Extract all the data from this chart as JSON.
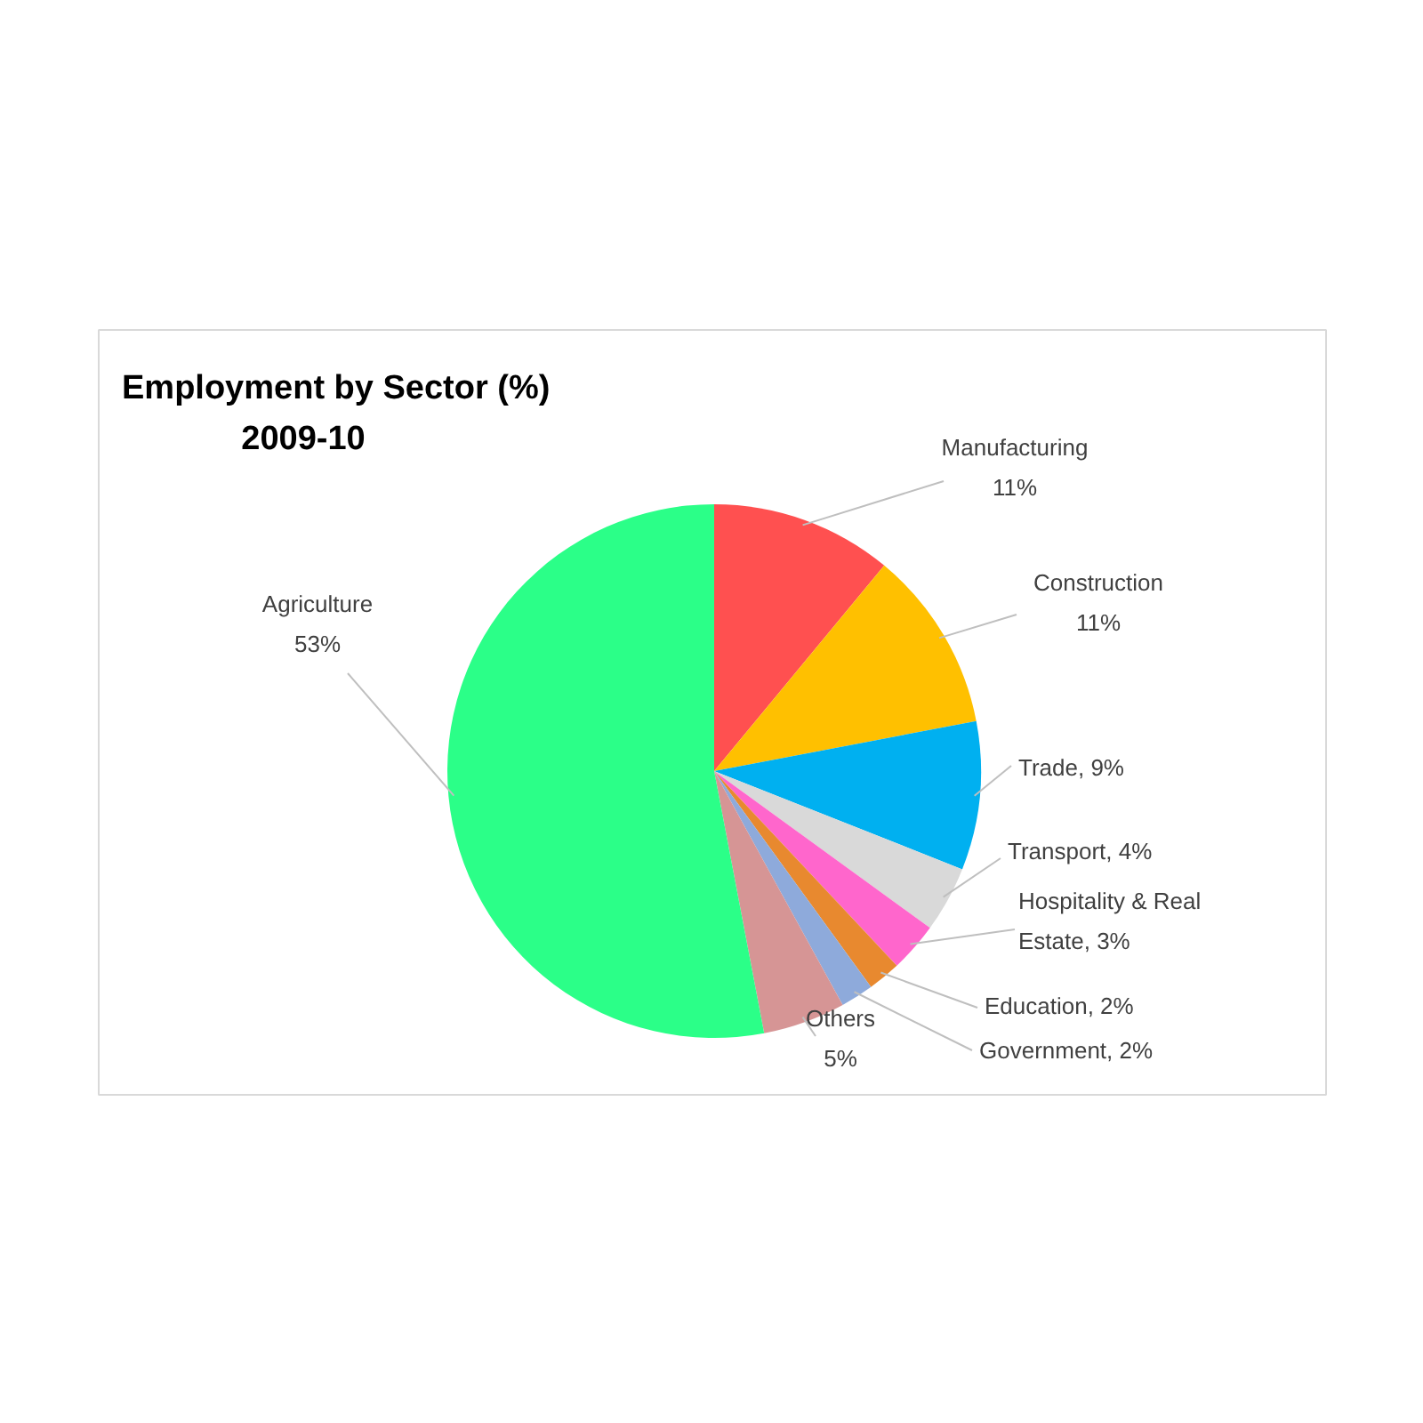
{
  "chart_data": {
    "type": "pie",
    "title": "Employment by Sector (%)",
    "subtitle": "2009-10",
    "categories": [
      "Manufacturing",
      "Construction",
      "Trade",
      "Transport",
      "Hospitality & Real Estate",
      "Education",
      "Government",
      "Others",
      "Agriculture"
    ],
    "values": [
      11,
      11,
      9,
      4,
      3,
      2,
      2,
      5,
      53
    ],
    "colors": [
      "#ff5050",
      "#ffc000",
      "#00b0f0",
      "#d9d9d9",
      "#ff66cc",
      "#e8892f",
      "#8eaadb",
      "#d69595",
      "#2bff88"
    ],
    "value_labels": [
      "11%",
      "11%",
      "9%",
      "4%",
      "3%",
      "2%",
      "2%",
      "5%",
      "53%"
    ]
  }
}
